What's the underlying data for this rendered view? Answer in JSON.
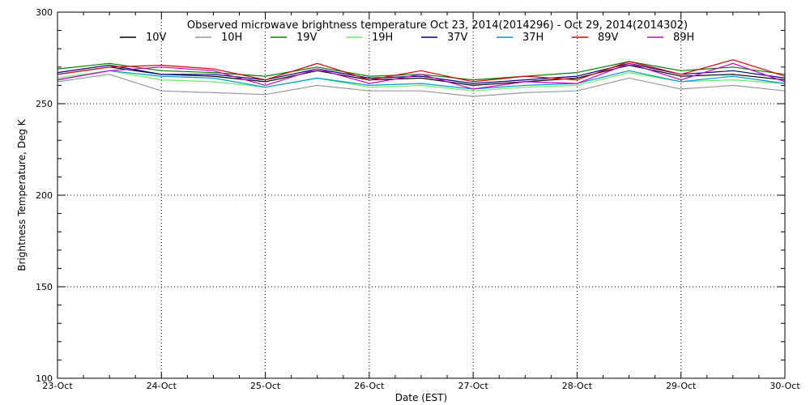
{
  "chart_data": {
    "type": "line",
    "title": "Observed microwave brightness temperature Oct 23, 2014(2014296) - Oct 29, 2014(2014302)",
    "xlabel": "Date (EST)",
    "ylabel": "Brightness Temperature, Deg K",
    "xlim": [
      "2014-10-23",
      "2014-10-30"
    ],
    "ylim": [
      100,
      300
    ],
    "x_ticks": [
      "23-Oct",
      "24-Oct",
      "25-Oct",
      "26-Oct",
      "27-Oct",
      "28-Oct",
      "29-Oct",
      "30-Oct"
    ],
    "y_ticks": [
      "100",
      "150",
      "200",
      "250",
      "300"
    ],
    "y_tick_values": [
      100,
      150,
      200,
      250,
      300
    ],
    "grid": true,
    "legend_position": "top",
    "x": [
      "2014-10-23",
      "2014-10-23T12:00",
      "2014-10-24",
      "2014-10-24T12:00",
      "2014-10-25",
      "2014-10-25T12:00",
      "2014-10-26",
      "2014-10-26T12:00",
      "2014-10-27",
      "2014-10-27T12:00",
      "2014-10-28",
      "2014-10-28T12:00",
      "2014-10-29",
      "2014-10-29T12:00",
      "2014-10-30"
    ],
    "series": [
      {
        "name": "10V",
        "color": "#000000",
        "values": [
          266,
          270,
          266,
          265,
          262,
          268,
          263,
          264,
          260,
          262,
          264,
          271,
          265,
          266,
          263
        ]
      },
      {
        "name": "10H",
        "color": "#999999",
        "values": [
          262,
          266,
          257,
          256,
          255,
          260,
          257,
          257,
          254,
          256,
          257,
          264,
          258,
          260,
          257
        ]
      },
      {
        "name": "19V",
        "color": "#008000",
        "values": [
          269,
          272,
          268,
          267,
          265,
          270,
          265,
          266,
          263,
          265,
          267,
          273,
          268,
          270,
          266
        ]
      },
      {
        "name": "19H",
        "color": "#66ee66",
        "values": [
          264,
          268,
          263,
          262,
          259,
          264,
          259,
          260,
          257,
          259,
          260,
          267,
          262,
          263,
          261
        ]
      },
      {
        "name": "37V",
        "color": "#000080",
        "values": [
          267,
          271,
          266,
          266,
          263,
          269,
          264,
          265,
          261,
          263,
          265,
          272,
          266,
          268,
          264
        ]
      },
      {
        "name": "37H",
        "color": "#0099cc",
        "values": [
          263,
          268,
          265,
          264,
          259,
          264,
          260,
          261,
          258,
          260,
          261,
          268,
          262,
          265,
          261
        ]
      },
      {
        "name": "89V",
        "color": "#dd0000",
        "values": [
          266,
          270,
          271,
          269,
          263,
          272,
          263,
          268,
          262,
          265,
          263,
          273,
          266,
          274,
          265
        ]
      },
      {
        "name": "89H",
        "color": "#cc00cc",
        "values": [
          263,
          268,
          270,
          268,
          260,
          269,
          261,
          266,
          258,
          262,
          261,
          272,
          263,
          272,
          262
        ]
      }
    ]
  }
}
